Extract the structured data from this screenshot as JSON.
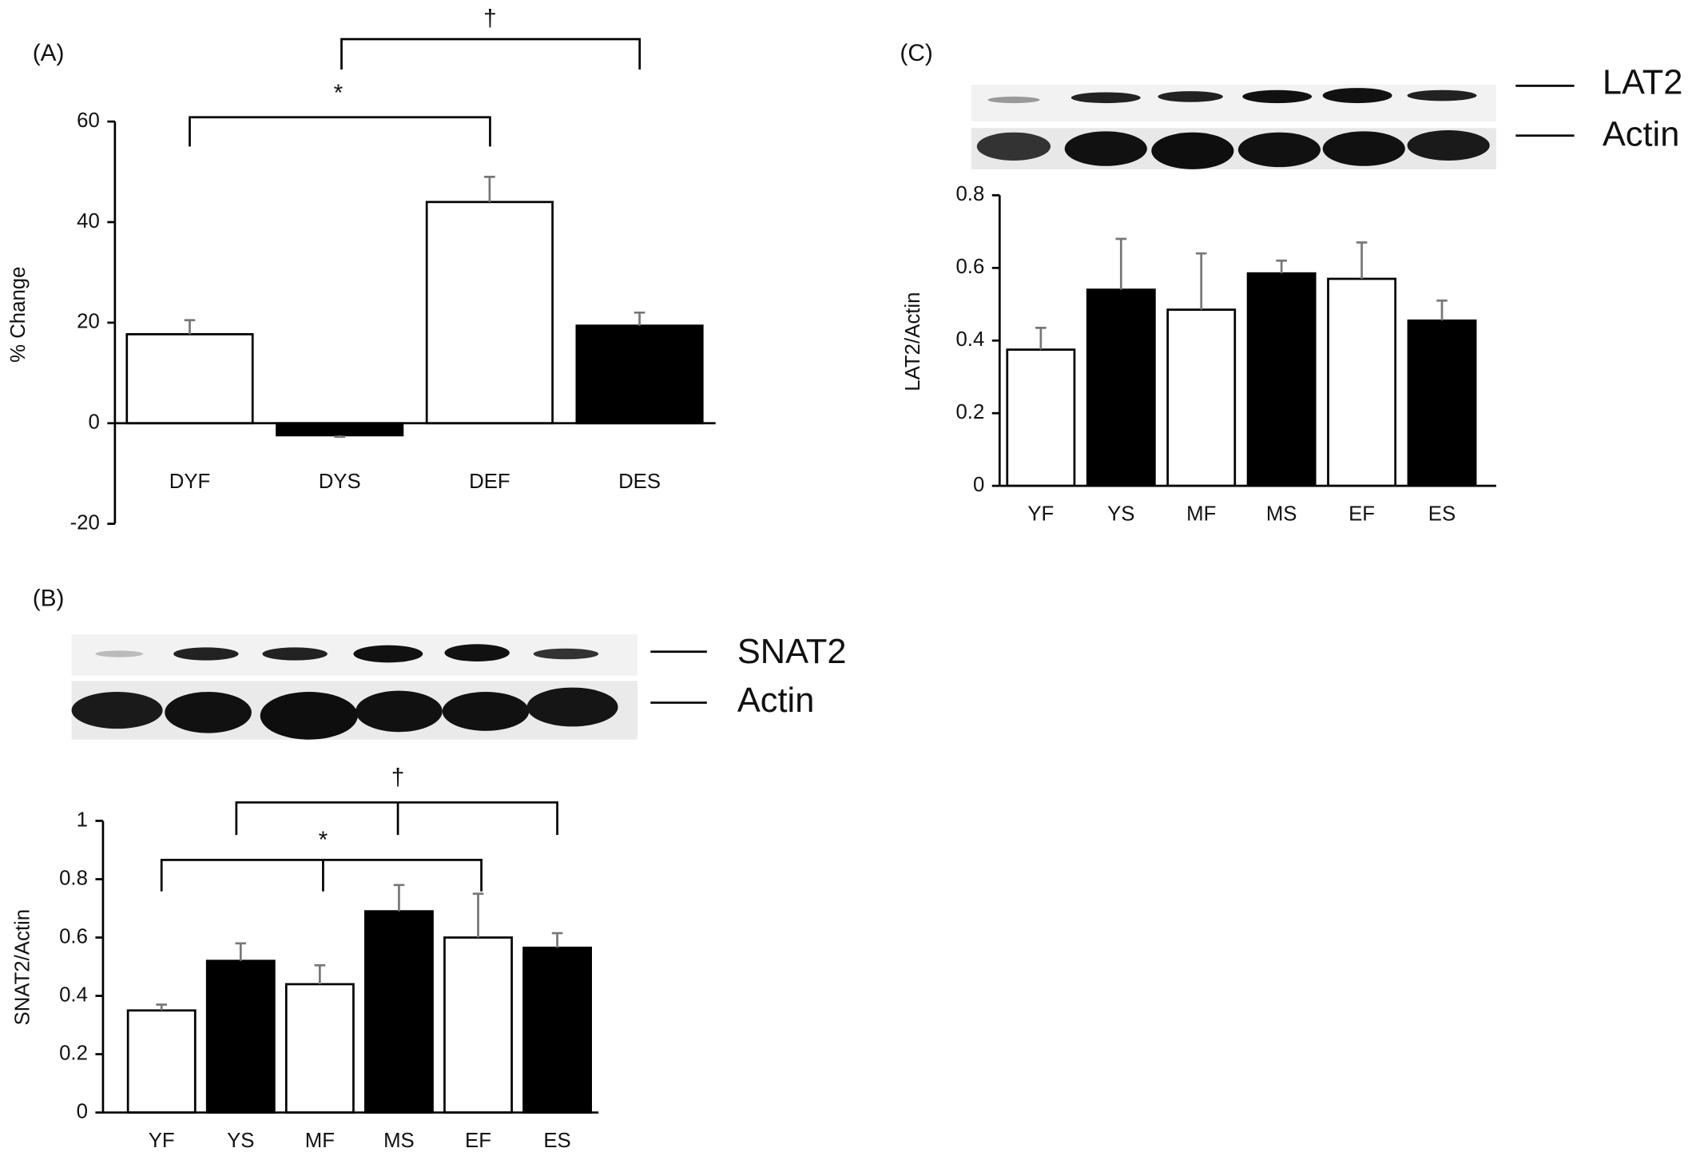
{
  "chart_data": [
    {
      "type": "bar",
      "label": "(A)",
      "ylabel": "% Change",
      "categories": [
        "DYF",
        "DYS",
        "DEF",
        "DES"
      ],
      "values": [
        17.7,
        -2.4,
        44,
        19.4
      ],
      "errors": [
        2.8,
        0.3,
        5,
        2.6
      ],
      "colors": [
        "#ffffff",
        "#000000",
        "#ffffff",
        "#000000"
      ],
      "ylim": [
        -20,
        60
      ],
      "yticks": [
        -20,
        0,
        20,
        40,
        60
      ],
      "annotations": [
        "*",
        "†"
      ]
    },
    {
      "type": "bar",
      "label": "(B)",
      "ylabel": "SNAT2/Actin",
      "blot_labels": [
        "SNAT2",
        "Actin"
      ],
      "categories": [
        "YF",
        "YS",
        "MF",
        "MS",
        "EF",
        "ES"
      ],
      "values": [
        0.35,
        0.52,
        0.44,
        0.69,
        0.6,
        0.565
      ],
      "errors": [
        0.02,
        0.06,
        0.065,
        0.09,
        0.15,
        0.05
      ],
      "colors": [
        "#ffffff",
        "#000000",
        "#ffffff",
        "#000000",
        "#ffffff",
        "#000000"
      ],
      "ylim": [
        0,
        1
      ],
      "yticks": [
        0,
        0.2,
        0.4,
        0.6,
        0.8,
        1
      ],
      "annotations": [
        "†",
        "*"
      ]
    },
    {
      "type": "bar",
      "label": "(C)",
      "ylabel": "LAT2/Actin",
      "blot_labels": [
        "LAT2",
        "Actin"
      ],
      "categories": [
        "YF",
        "YS",
        "MF",
        "MS",
        "EF",
        "ES"
      ],
      "values": [
        0.375,
        0.54,
        0.485,
        0.585,
        0.57,
        0.455
      ],
      "errors": [
        0.06,
        0.14,
        0.155,
        0.035,
        0.1,
        0.055
      ],
      "colors": [
        "#ffffff",
        "#000000",
        "#ffffff",
        "#000000",
        "#ffffff",
        "#000000"
      ],
      "ylim": [
        0,
        0.8
      ],
      "yticks": [
        0,
        0.2,
        0.4,
        0.6,
        0.8
      ]
    }
  ]
}
